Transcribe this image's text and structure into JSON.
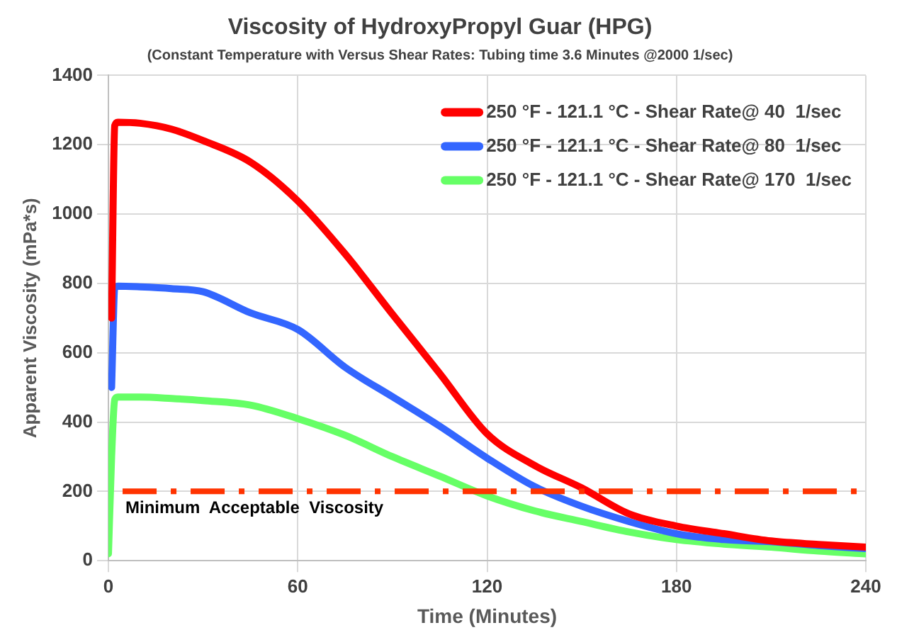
{
  "chart_data": {
    "type": "line",
    "title": "Viscosity of HydroxyPropyl Guar (HPG)",
    "subtitle": "(Constant Temperature with Versus Shear Rates: Tubing time 3.6 Minutes @2000 1/sec)",
    "xlabel": "Time (Minutes)",
    "ylabel": "Apparent Viscosity (mPa*s)",
    "x": [
      0,
      1,
      2,
      3,
      10,
      20,
      30,
      45,
      60,
      75,
      90,
      105,
      120,
      135,
      150,
      165,
      180,
      195,
      210,
      225,
      240
    ],
    "series": [
      {
        "name": "250 °F - 121.1 °C - Shear Rate@ 40  1/sec",
        "color": "#ff0000",
        "values": [
          null,
          700,
          1255,
          1265,
          1262,
          1245,
          1212,
          1150,
          1038,
          885,
          711,
          540,
          366,
          275,
          210,
          135,
          100,
          78,
          57,
          47,
          39
        ]
      },
      {
        "name": "250 °F - 121.1 °C - Shear Rate@ 80  1/sec",
        "color": "#3366ff",
        "values": [
          null,
          500,
          785,
          792,
          790,
          785,
          776,
          715,
          667,
          558,
          473,
          388,
          296,
          214,
          157,
          113,
          78,
          61,
          55,
          44,
          35
        ]
      },
      {
        "name": "250 °F - 121.1 °C - Shear Rate@ 170  1/sec",
        "color": "#66ff66",
        "values": [
          20,
          300,
          465,
          472,
          472,
          468,
          462,
          449,
          410,
          362,
          300,
          244,
          187,
          144,
          113,
          83,
          61,
          48,
          39,
          28,
          20
        ]
      }
    ],
    "xlim": [
      0,
      240
    ],
    "xticks": [
      0,
      60,
      120,
      180,
      240
    ],
    "ylim": [
      0,
      1400
    ],
    "yticks": [
      0,
      200,
      400,
      600,
      800,
      1000,
      1200,
      1400
    ],
    "ref_lines": [
      {
        "axis": "y",
        "value": 200,
        "label": "Minimum  Acceptable  Viscosity",
        "color": "#ff3300",
        "line_style": "dashdot"
      }
    ],
    "grid": true,
    "legend": "top right",
    "marker": "none",
    "line_style": "solid"
  }
}
